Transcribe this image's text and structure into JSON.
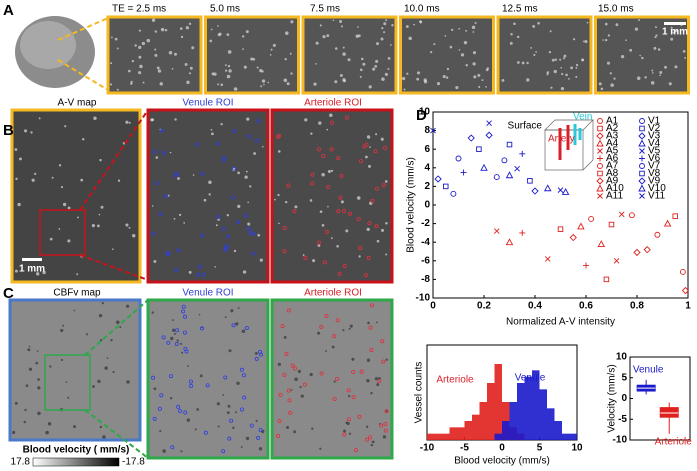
{
  "panel_labels": [
    "A",
    "B",
    "C",
    "D"
  ],
  "panel_a": {
    "te_labels": [
      "TE = 2.5 ms",
      "5.0 ms",
      "7.5 ms",
      "10.0 ms",
      "12.5 ms",
      "15.0 ms"
    ],
    "scale_bar": "1 mm"
  },
  "panel_b": {
    "titles": [
      "A-V map",
      "Venule ROI",
      "Arteriole ROI"
    ],
    "scale_bar": "1 mm"
  },
  "panel_c": {
    "titles": [
      "CBFv map",
      "Venule ROI",
      "Arteriole ROI"
    ],
    "colorbar": {
      "label": "Blood velocity ( mm/s)",
      "max": "17.8",
      "min": "-17.8"
    }
  },
  "chart_data": [
    {
      "type": "scatter",
      "xlabel": "Normalized A-V intensity",
      "ylabel": "Blood velocity (mm/s)",
      "inset": {
        "title": "Surface",
        "vein": "Vein",
        "artery": "Artery"
      },
      "xlim": [
        0,
        1
      ],
      "xticks": [
        0,
        0.2,
        0.4,
        0.6,
        0.8,
        1
      ],
      "ylim": [
        -10,
        10
      ],
      "yticks": [
        -10,
        -8,
        -6,
        -4,
        -2,
        0,
        2,
        4,
        6,
        8,
        10
      ],
      "series": [
        {
          "name": "A1",
          "color": "#e0201c",
          "marker": "circle",
          "x": [
            0.62,
            0.88
          ],
          "values": [
            -1.5,
            -3.2
          ]
        },
        {
          "name": "A2",
          "color": "#e0201c",
          "marker": "square",
          "x": [
            0.7,
            0.95
          ],
          "values": [
            -2.1,
            -1.2
          ]
        },
        {
          "name": "A3",
          "color": "#e0201c",
          "marker": "diamond",
          "x": [
            0.55,
            0.8
          ],
          "values": [
            -3.5,
            -5.1
          ]
        },
        {
          "name": "A4",
          "color": "#e0201c",
          "marker": "triangle",
          "x": [
            0.66,
            0.92
          ],
          "values": [
            -4.2,
            -2.0
          ]
        },
        {
          "name": "A5",
          "color": "#e0201c",
          "marker": "x",
          "x": [
            0.45,
            0.74
          ],
          "values": [
            -5.8,
            -1.0
          ]
        },
        {
          "name": "A6",
          "color": "#e0201c",
          "marker": "plus",
          "x": [
            0.35,
            0.6
          ],
          "values": [
            -3.0,
            -6.5
          ]
        },
        {
          "name": "A7",
          "color": "#e0201c",
          "marker": "circle",
          "x": [
            0.78,
            0.98
          ],
          "values": [
            -1.1,
            -7.2
          ]
        },
        {
          "name": "A8",
          "color": "#e0201c",
          "marker": "square",
          "x": [
            0.5,
            0.68
          ],
          "values": [
            -2.6,
            -8.0
          ]
        },
        {
          "name": "A9",
          "color": "#e0201c",
          "marker": "diamond",
          "x": [
            0.84,
            0.99
          ],
          "values": [
            -4.8,
            -9.2
          ]
        },
        {
          "name": "A10",
          "color": "#e0201c",
          "marker": "triangle",
          "x": [
            0.3,
            0.58
          ],
          "values": [
            -4.0,
            -2.3
          ]
        },
        {
          "name": "A11",
          "color": "#e0201c",
          "marker": "x",
          "x": [
            0.25,
            0.72
          ],
          "values": [
            -2.8,
            -6.0
          ]
        },
        {
          "name": "V1",
          "color": "#1a1acc",
          "marker": "circle",
          "x": [
            0.1,
            0.25
          ],
          "values": [
            5.0,
            3.0
          ]
        },
        {
          "name": "V2",
          "color": "#1a1acc",
          "marker": "square",
          "x": [
            0.05,
            0.3
          ],
          "values": [
            2.0,
            6.5
          ]
        },
        {
          "name": "V3",
          "color": "#1a1acc",
          "marker": "diamond",
          "x": [
            0.15,
            0.4
          ],
          "values": [
            7.2,
            1.5
          ]
        },
        {
          "name": "V4",
          "color": "#1a1acc",
          "marker": "triangle",
          "x": [
            0.2,
            0.45
          ],
          "values": [
            4.0,
            1.8
          ]
        },
        {
          "name": "V5",
          "color": "#1a1acc",
          "marker": "x",
          "x": [
            0.0,
            0.5
          ],
          "values": [
            8.0,
            1.6
          ]
        },
        {
          "name": "V6",
          "color": "#1a1acc",
          "marker": "plus",
          "x": [
            0.12,
            0.35
          ],
          "values": [
            3.5,
            5.5
          ]
        },
        {
          "name": "V7",
          "color": "#1a1acc",
          "marker": "circle",
          "x": [
            0.08,
            0.28
          ],
          "values": [
            1.2,
            4.8
          ]
        },
        {
          "name": "V8",
          "color": "#1a1acc",
          "marker": "square",
          "x": [
            0.18,
            0.38
          ],
          "values": [
            6.0,
            2.6
          ]
        },
        {
          "name": "V9",
          "color": "#1a1acc",
          "marker": "diamond",
          "x": [
            0.02,
            0.22
          ],
          "values": [
            2.8,
            7.5
          ]
        },
        {
          "name": "V10",
          "color": "#1a1acc",
          "marker": "triangle",
          "x": [
            0.3,
            0.52
          ],
          "values": [
            3.2,
            1.4
          ]
        },
        {
          "name": "V11",
          "color": "#1a1acc",
          "marker": "x",
          "x": [
            0.22,
            0.33
          ],
          "values": [
            8.8,
            3.9
          ]
        }
      ]
    },
    {
      "type": "histogram",
      "xlabel": "Blood velocity (mm/s)",
      "ylabel": "Vessel counts",
      "xlim": [
        -10,
        10
      ],
      "xticks": [
        -10,
        -5,
        0,
        5,
        10
      ],
      "ylim": [
        0,
        15
      ],
      "bins": [
        -10,
        -9,
        -8,
        -7,
        -6,
        -5,
        -4,
        -3,
        -2,
        -1,
        0,
        1,
        2,
        3,
        4,
        5,
        6,
        7,
        8,
        9,
        10
      ],
      "series": [
        {
          "name": "Arteriole",
          "color": "#e0201c",
          "values": [
            1,
            1,
            1,
            2,
            2,
            3,
            4,
            6,
            9,
            12,
            6,
            2,
            1,
            0,
            0,
            0,
            0,
            0,
            0,
            0
          ]
        },
        {
          "name": "Venule",
          "color": "#1a1acc",
          "values": [
            0,
            0,
            0,
            0,
            0,
            0,
            0,
            0,
            0,
            1,
            3,
            6,
            9,
            10,
            11,
            8,
            5,
            3,
            1,
            1
          ]
        }
      ]
    },
    {
      "type": "box",
      "ylabel": "Velocity (mm/s)",
      "ylim": [
        -10,
        10
      ],
      "yticks": [
        -10,
        -5,
        0,
        5,
        10
      ],
      "series": [
        {
          "name": "Venule",
          "color": "#1a1acc",
          "whisker_low": 1,
          "q1": 1.8,
          "median": 2.5,
          "q3": 3.2,
          "whisker_high": 4.5
        },
        {
          "name": "Arteriole",
          "color": "#e0201c",
          "whisker_low": -8.5,
          "q1": -4.5,
          "median": -3.5,
          "q3": -2.2,
          "whisker_high": -1
        }
      ]
    }
  ]
}
